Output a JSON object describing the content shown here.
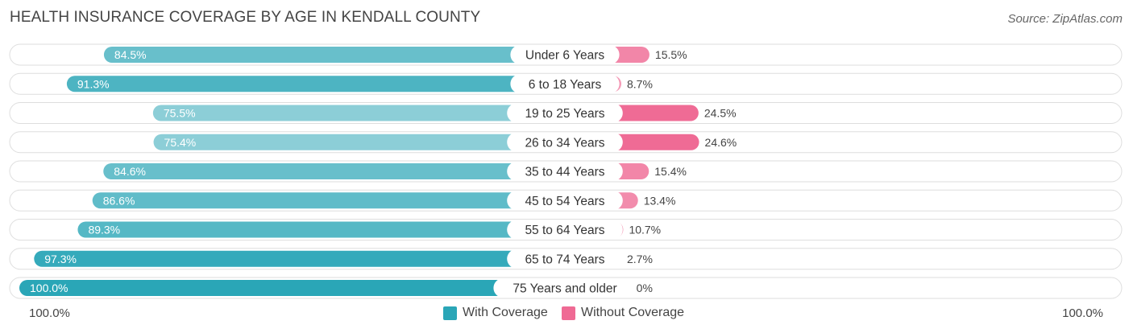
{
  "title": "HEALTH INSURANCE COVERAGE BY AGE IN KENDALL COUNTY",
  "source": "Source: ZipAtlas.com",
  "colors": {
    "with_coverage": "#5bbcc8",
    "with_coverage_strong": "#2aa6b7",
    "without_coverage": "#f07ea0",
    "without_coverage_strong": "#ef6a94",
    "track": "#efefef"
  },
  "legend": {
    "with_label": "With Coverage",
    "without_label": "Without Coverage"
  },
  "axis": {
    "left_label": "100.0%",
    "right_label": "100.0%"
  },
  "chart_data": {
    "type": "bar",
    "orientation": "horizontal-diverging",
    "title": "HEALTH INSURANCE COVERAGE BY AGE IN KENDALL COUNTY",
    "categories": [
      "Under 6 Years",
      "6 to 18 Years",
      "19 to 25 Years",
      "26 to 34 Years",
      "35 to 44 Years",
      "45 to 54 Years",
      "55 to 64 Years",
      "65 to 74 Years",
      "75 Years and older"
    ],
    "series": [
      {
        "name": "With Coverage",
        "values": [
          84.5,
          91.3,
          75.5,
          75.4,
          84.6,
          86.6,
          89.3,
          97.3,
          100.0
        ],
        "labels": [
          "84.5%",
          "91.3%",
          "75.5%",
          "75.4%",
          "84.6%",
          "86.6%",
          "89.3%",
          "97.3%",
          "100.0%"
        ]
      },
      {
        "name": "Without Coverage",
        "values": [
          15.5,
          8.7,
          24.5,
          24.6,
          15.4,
          13.4,
          10.7,
          2.7,
          0.0
        ],
        "labels": [
          "15.5%",
          "8.7%",
          "24.5%",
          "24.6%",
          "15.4%",
          "13.4%",
          "10.7%",
          "2.7%",
          "0.0%"
        ]
      }
    ],
    "xlim": [
      -100,
      100
    ],
    "legend_position": "bottom-center"
  }
}
